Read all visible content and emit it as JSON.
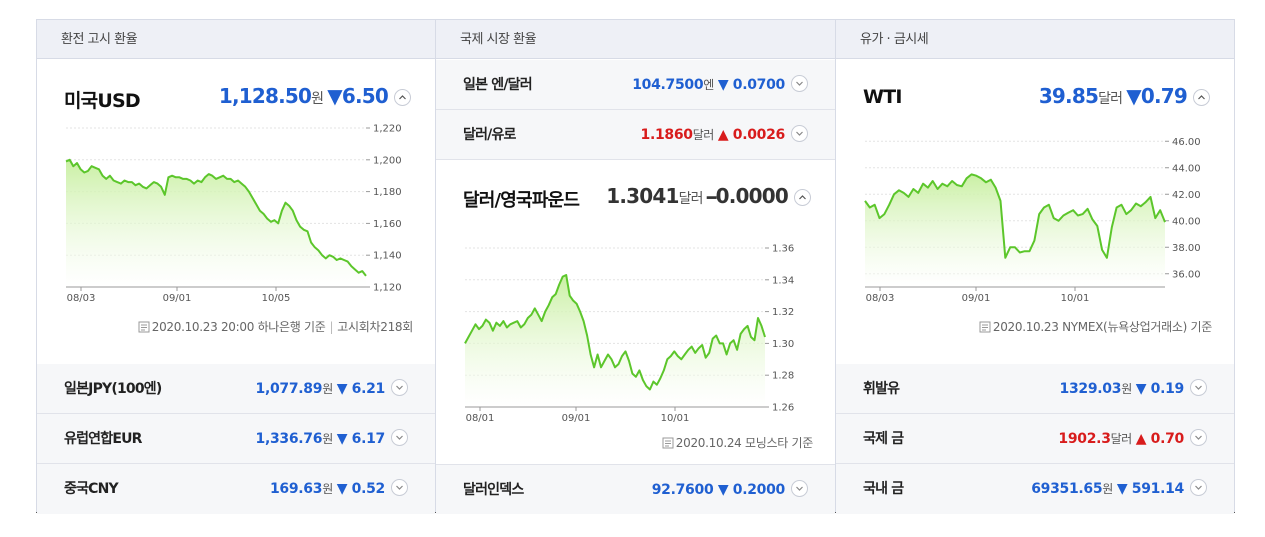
{
  "columns": {
    "exchange": {
      "header": "환전 고시 환율",
      "main": {
        "name": "미국USD",
        "value": "1,128.50",
        "unit": "원",
        "change_symbol": "▼",
        "change": "6.50",
        "direction": "down",
        "note": {
          "date": "2020.10.23 20:00",
          "source": "하나은행 기준",
          "round": "고시회차218회"
        }
      },
      "chart": {
        "type": "area",
        "y_ticks": [
          "1,220",
          "1,200",
          "1,180",
          "1,160",
          "1,140",
          "1,120"
        ],
        "ylim": [
          1120,
          1220
        ],
        "x_ticks": [
          "08/03",
          "09/01",
          "10/05"
        ],
        "values": [
          1199,
          1200,
          1196,
          1198,
          1194,
          1192,
          1193,
          1196,
          1195,
          1194,
          1190,
          1188,
          1190,
          1187,
          1186,
          1185,
          1187,
          1186,
          1186,
          1184,
          1185,
          1183,
          1182,
          1184,
          1186,
          1185,
          1183,
          1178,
          1189,
          1190,
          1189,
          1189,
          1188,
          1188,
          1187,
          1185,
          1187,
          1186,
          1189,
          1191,
          1190,
          1188,
          1189,
          1190,
          1188,
          1188,
          1186,
          1187,
          1185,
          1183,
          1180,
          1176,
          1172,
          1168,
          1166,
          1163,
          1161,
          1162,
          1160,
          1168,
          1173,
          1171,
          1168,
          1162,
          1158,
          1156,
          1155,
          1148,
          1145,
          1143,
          1140,
          1138,
          1140,
          1139,
          1137,
          1138,
          1137,
          1136,
          1133,
          1131,
          1129,
          1130,
          1127
        ]
      },
      "rows": [
        {
          "name": "일본JPY(100엔)",
          "value": "1,077.89",
          "unit": "원",
          "change_symbol": "▼",
          "change": "6.21",
          "direction": "down"
        },
        {
          "name": "유럽연합EUR",
          "value": "1,336.76",
          "unit": "원",
          "change_symbol": "▼",
          "change": "6.17",
          "direction": "down"
        },
        {
          "name": "중국CNY",
          "value": "169.63",
          "unit": "원",
          "change_symbol": "▼",
          "change": "0.52",
          "direction": "down"
        }
      ]
    },
    "intl": {
      "header": "국제 시장 환율",
      "rows_top": [
        {
          "name": "일본 엔/달러",
          "value": "104.7500",
          "unit": "엔",
          "change_symbol": "▼",
          "change": "0.0700",
          "direction": "down"
        },
        {
          "name": "달러/유로",
          "value": "1.1860",
          "unit": "달러",
          "change_symbol": "▲",
          "change": "0.0026",
          "direction": "up"
        }
      ],
      "main": {
        "name": "달러/영국파운드",
        "value": "1.3041",
        "unit": "달러",
        "change_symbol": "━",
        "change": "0.0000",
        "direction": "flat",
        "note": {
          "date": "2020.10.24",
          "source": "모닝스타 기준"
        }
      },
      "chart": {
        "type": "area",
        "y_ticks": [
          "1.36",
          "1.34",
          "1.32",
          "1.30",
          "1.28",
          "1.26"
        ],
        "ylim": [
          1.26,
          1.36
        ],
        "x_ticks": [
          "08/01",
          "09/01",
          "10/01"
        ],
        "values": [
          1.3,
          1.304,
          1.308,
          1.312,
          1.309,
          1.311,
          1.315,
          1.313,
          1.308,
          1.313,
          1.311,
          1.314,
          1.31,
          1.312,
          1.313,
          1.314,
          1.31,
          1.312,
          1.316,
          1.318,
          1.322,
          1.318,
          1.314,
          1.32,
          1.324,
          1.329,
          1.331,
          1.337,
          1.342,
          1.343,
          1.33,
          1.327,
          1.325,
          1.32,
          1.314,
          1.305,
          1.293,
          1.285,
          1.293,
          1.285,
          1.289,
          1.293,
          1.29,
          1.285,
          1.287,
          1.292,
          1.295,
          1.289,
          1.281,
          1.279,
          1.283,
          1.277,
          1.273,
          1.271,
          1.276,
          1.274,
          1.278,
          1.283,
          1.29,
          1.292,
          1.295,
          1.292,
          1.29,
          1.293,
          1.296,
          1.298,
          1.294,
          1.297,
          1.299,
          1.291,
          1.294,
          1.303,
          1.305,
          1.3,
          1.3,
          1.293,
          1.3,
          1.302,
          1.296,
          1.306,
          1.309,
          1.311,
          1.304,
          1.302,
          1.316,
          1.311,
          1.304
        ]
      },
      "rows_bottom": [
        {
          "name": "달러인덱스",
          "value": "92.7600",
          "unit": "",
          "change_symbol": "▼",
          "change": "0.2000",
          "direction": "down"
        }
      ]
    },
    "commodity": {
      "header": "유가 · 금시세",
      "main": {
        "name": "WTI",
        "value": "39.85",
        "unit": "달러",
        "change_symbol": "▼",
        "change": "0.79",
        "direction": "down",
        "note": {
          "date": "2020.10.23",
          "source": "NYMEX(뉴욕상업거래소) 기준"
        }
      },
      "chart": {
        "type": "area",
        "y_ticks": [
          "46.00",
          "44.00",
          "42.00",
          "40.00",
          "38.00",
          "36.00"
        ],
        "ylim": [
          35,
          47
        ],
        "x_ticks": [
          "08/03",
          "09/01",
          "10/01"
        ],
        "values": [
          41.5,
          41.0,
          41.2,
          40.2,
          40.5,
          41.2,
          42.0,
          42.3,
          42.1,
          41.8,
          42.4,
          42.1,
          42.8,
          42.5,
          43.0,
          42.4,
          42.8,
          42.6,
          43.0,
          42.7,
          42.6,
          43.2,
          43.5,
          43.4,
          43.2,
          42.9,
          43.1,
          42.5,
          41.5,
          37.2,
          38.0,
          38.0,
          37.6,
          37.7,
          37.7,
          38.5,
          40.5,
          41.0,
          41.2,
          40.2,
          40.0,
          40.4,
          40.6,
          40.8,
          40.4,
          40.5,
          40.9,
          40.1,
          39.6,
          37.8,
          37.2,
          39.5,
          41.0,
          41.2,
          40.5,
          40.8,
          41.3,
          41.1,
          41.4,
          41.8,
          40.2,
          40.8,
          39.9
        ]
      },
      "rows": [
        {
          "name": "휘발유",
          "value": "1329.03",
          "unit": "원",
          "change_symbol": "▼",
          "change": "0.19",
          "direction": "down"
        },
        {
          "name": "국제 금",
          "value": "1902.3",
          "unit": "달러",
          "change_symbol": "▲",
          "change": "0.70",
          "direction": "up"
        },
        {
          "name": "국내 금",
          "value": "69351.65",
          "unit": "원",
          "change_symbol": "▼",
          "change": "591.14",
          "direction": "down"
        }
      ]
    }
  },
  "colors": {
    "up": "#d81c1c",
    "down": "#1f5fd1",
    "line": "#5cc62b",
    "fill_top": "#c7ef9f"
  }
}
